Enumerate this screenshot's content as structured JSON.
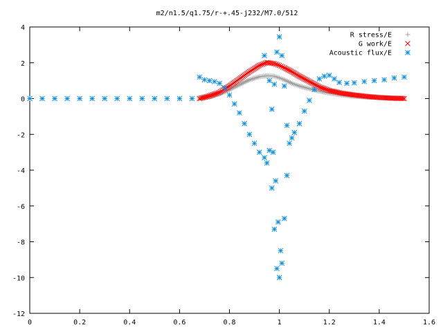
{
  "chart_data": {
    "type": "scatter",
    "title": "m2/n1.5/q1.75/r-+.45-j232/M7.0/512",
    "xlabel": "",
    "ylabel": "",
    "xlim": [
      0,
      1.6
    ],
    "ylim": [
      -12,
      4
    ],
    "xticks": [
      "0",
      "0.2",
      "0.4",
      "0.6",
      "0.8",
      "1",
      "1.2",
      "1.4",
      "1.6"
    ],
    "yticks": [
      "4",
      "2",
      "0",
      "-2",
      "-4",
      "-6",
      "-8",
      "-10",
      "-12"
    ],
    "grid": false,
    "legend_position": "top-right",
    "series": [
      {
        "name": "R stress/E",
        "marker": "plus",
        "color": "#a0a0a0",
        "points": [
          [
            0.68,
            0.02
          ],
          [
            0.72,
            0.08
          ],
          [
            0.76,
            0.25
          ],
          [
            0.8,
            0.5
          ],
          [
            0.84,
            0.78
          ],
          [
            0.88,
            1.05
          ],
          [
            0.92,
            1.22
          ],
          [
            0.95,
            1.28
          ],
          [
            0.98,
            1.25
          ],
          [
            1.0,
            1.15
          ],
          [
            1.02,
            1.05
          ],
          [
            1.05,
            0.85
          ],
          [
            1.08,
            0.7
          ],
          [
            1.12,
            0.55
          ],
          [
            1.16,
            0.42
          ],
          [
            1.2,
            0.3
          ],
          [
            1.25,
            0.2
          ],
          [
            1.3,
            0.12
          ],
          [
            1.35,
            0.08
          ],
          [
            1.4,
            0.05
          ],
          [
            1.45,
            0.03
          ],
          [
            1.5,
            0.02
          ]
        ]
      },
      {
        "name": "G work/E",
        "marker": "cross",
        "color": "#ff0000",
        "points": [
          [
            0.68,
            0.0
          ],
          [
            0.72,
            0.15
          ],
          [
            0.76,
            0.35
          ],
          [
            0.8,
            0.7
          ],
          [
            0.84,
            1.1
          ],
          [
            0.88,
            1.5
          ],
          [
            0.92,
            1.85
          ],
          [
            0.95,
            2.02
          ],
          [
            0.98,
            1.95
          ],
          [
            1.0,
            1.85
          ],
          [
            1.02,
            1.72
          ],
          [
            1.05,
            1.5
          ],
          [
            1.08,
            1.25
          ],
          [
            1.12,
            0.95
          ],
          [
            1.16,
            0.65
          ],
          [
            1.2,
            0.45
          ],
          [
            1.25,
            0.3
          ],
          [
            1.3,
            0.2
          ],
          [
            1.35,
            0.12
          ],
          [
            1.4,
            0.06
          ],
          [
            1.45,
            0.02
          ],
          [
            1.5,
            0.0
          ]
        ]
      },
      {
        "name": "Acoustic flux/E",
        "marker": "star",
        "color": "#0a8fe6",
        "points": [
          [
            0.0,
            0.0
          ],
          [
            0.05,
            0.0
          ],
          [
            0.1,
            0.0
          ],
          [
            0.15,
            0.0
          ],
          [
            0.2,
            0.0
          ],
          [
            0.25,
            0.0
          ],
          [
            0.3,
            0.0
          ],
          [
            0.35,
            0.0
          ],
          [
            0.4,
            0.0
          ],
          [
            0.45,
            0.0
          ],
          [
            0.5,
            0.0
          ],
          [
            0.55,
            0.0
          ],
          [
            0.6,
            0.0
          ],
          [
            0.65,
            0.0
          ],
          [
            0.68,
            1.2
          ],
          [
            0.7,
            1.05
          ],
          [
            0.72,
            1.0
          ],
          [
            0.74,
            0.95
          ],
          [
            0.76,
            0.85
          ],
          [
            0.78,
            0.6
          ],
          [
            0.8,
            0.2
          ],
          [
            0.82,
            -0.3
          ],
          [
            0.84,
            -0.8
          ],
          [
            0.86,
            -1.4
          ],
          [
            0.88,
            -2.0
          ],
          [
            0.9,
            -2.5
          ],
          [
            0.92,
            -3.0
          ],
          [
            0.94,
            -3.3
          ],
          [
            0.95,
            -3.6
          ],
          [
            0.96,
            -2.9
          ],
          [
            0.97,
            -5.0
          ],
          [
            0.98,
            -7.3
          ],
          [
            0.99,
            -9.5
          ],
          [
            1.0,
            -10.0
          ],
          [
            1.01,
            -9.2
          ],
          [
            1.02,
            -6.7
          ],
          [
            1.03,
            -4.3
          ],
          [
            1.04,
            -2.5
          ],
          [
            1.05,
            -2.2
          ],
          [
            1.06,
            -1.9
          ],
          [
            1.08,
            -1.4
          ],
          [
            1.1,
            -0.7
          ],
          [
            1.12,
            -0.1
          ],
          [
            1.14,
            0.5
          ],
          [
            1.16,
            1.1
          ],
          [
            1.18,
            1.25
          ],
          [
            1.2,
            1.3
          ],
          [
            1.22,
            1.1
          ],
          [
            1.24,
            0.9
          ],
          [
            1.27,
            0.85
          ],
          [
            1.3,
            0.88
          ],
          [
            1.34,
            0.95
          ],
          [
            1.38,
            1.0
          ],
          [
            1.42,
            1.05
          ],
          [
            1.46,
            1.15
          ],
          [
            1.5,
            1.2
          ],
          [
            0.94,
            2.4
          ],
          [
            0.96,
            1.0
          ],
          [
            0.97,
            -0.6
          ],
          [
            0.98,
            0.8
          ],
          [
            0.99,
            2.6
          ],
          [
            1.0,
            3.45
          ],
          [
            1.01,
            2.4
          ],
          [
            1.02,
            0.7
          ],
          [
            1.03,
            -1.5
          ],
          [
            0.975,
            -3.0
          ],
          [
            0.985,
            -4.6
          ],
          [
            0.995,
            -6.9
          ],
          [
            1.005,
            -8.5
          ]
        ]
      }
    ]
  }
}
